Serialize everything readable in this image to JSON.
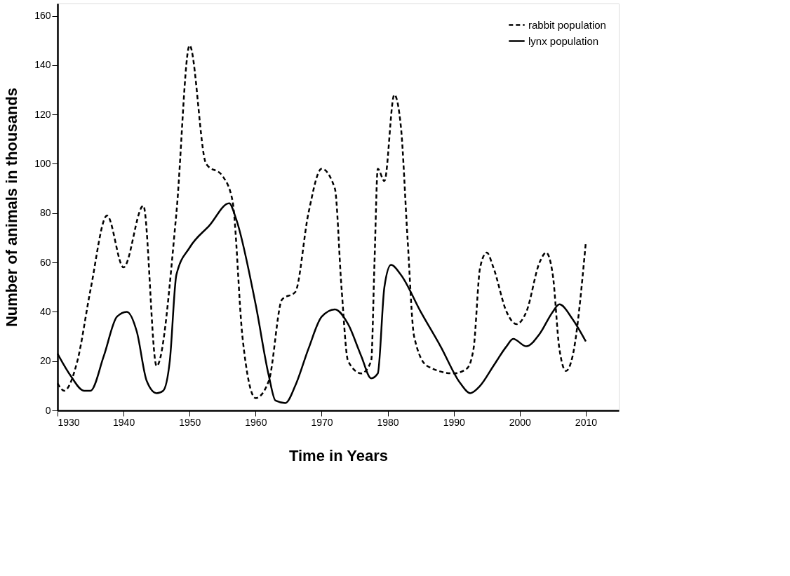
{
  "chart_data": {
    "type": "line",
    "xlabel": "Time in Years",
    "ylabel": "Number of animals in thousands",
    "xlim": [
      1930,
      2015
    ],
    "xticks": [
      1930,
      1940,
      1950,
      1960,
      1970,
      1980,
      1990,
      2000,
      2010
    ],
    "ylim": [
      0,
      165
    ],
    "yticks": [
      0,
      20,
      40,
      60,
      80,
      100,
      120,
      140,
      160
    ],
    "grid": false,
    "legend": "top right",
    "marker": "none",
    "series": [
      {
        "name": "rabbit population",
        "color": "#000000",
        "line_style": "dashed",
        "x": [
          1930,
          1931,
          1933,
          1935,
          1937.5,
          1940,
          1943,
          1945,
          1948,
          1950,
          1952.5,
          1955,
          1956.5,
          1958,
          1960,
          1962,
          1964,
          1966,
          1968,
          1970,
          1972,
          1973,
          1974,
          1976,
          1977.5,
          1978,
          1978.5,
          1979.5,
          1981,
          1982,
          1983,
          1984,
          1986,
          1990,
          1992,
          1993,
          1994,
          1995,
          1996,
          1998,
          1999.5,
          2001,
          2003,
          2004,
          2005,
          2006,
          2007,
          2008,
          2010
        ],
        "values": [
          11,
          8,
          20,
          49,
          79,
          58,
          83,
          18,
          80,
          148,
          100,
          95,
          85,
          30,
          5,
          12,
          45,
          48,
          80,
          98,
          90,
          50,
          20,
          15,
          20,
          60,
          98,
          93,
          128,
          115,
          70,
          30,
          18,
          15,
          17,
          25,
          58,
          64,
          58,
          40,
          35,
          40,
          60,
          64,
          55,
          25,
          16,
          22,
          68
        ]
      },
      {
        "name": "lynx population",
        "color": "#000000",
        "line_style": "solid",
        "x": [
          1930,
          1932,
          1934,
          1935,
          1937,
          1939,
          1940.5,
          1942,
          1943.5,
          1945,
          1946,
          1947,
          1948,
          1950,
          1953,
          1956,
          1957,
          1960,
          1962,
          1963,
          1964.5,
          1966,
          1968,
          1970,
          1972,
          1974,
          1976,
          1977.5,
          1978.5,
          1979.5,
          1980.5,
          1982,
          1985,
          1988,
          1991,
          1992.5,
          1994,
          1996,
          1998,
          1999,
          2001,
          2003,
          2005,
          2006,
          2008,
          2010
        ],
        "values": [
          23,
          14,
          8,
          8,
          22,
          38,
          40,
          32,
          12,
          7,
          8,
          20,
          55,
          66,
          75,
          84,
          78,
          43,
          14,
          4,
          3,
          10,
          25,
          38,
          41,
          35,
          22,
          13,
          15,
          50,
          59,
          55,
          40,
          26,
          11,
          7,
          10,
          18,
          26,
          29,
          26,
          31,
          40,
          43,
          37,
          28
        ]
      }
    ]
  }
}
